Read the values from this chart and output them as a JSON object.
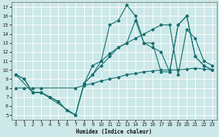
{
  "xlabel": "Humidex (Indice chaleur)",
  "bg_color": "#cce8e8",
  "grid_color": "#b8d8d8",
  "line_color": "#1a7070",
  "xlim": [
    -0.5,
    23.5
  ],
  "ylim": [
    4.5,
    17.5
  ],
  "xticks": [
    0,
    1,
    2,
    3,
    4,
    5,
    6,
    7,
    8,
    9,
    10,
    11,
    12,
    13,
    14,
    15,
    16,
    17,
    18,
    19,
    20,
    21,
    22,
    23
  ],
  "yticks": [
    5,
    6,
    7,
    8,
    9,
    10,
    11,
    12,
    13,
    14,
    15,
    16,
    17
  ],
  "lines": [
    {
      "x": [
        0,
        1,
        2,
        3,
        4,
        5,
        6,
        7,
        8,
        9,
        10,
        11,
        12,
        13,
        14,
        15,
        16,
        17,
        18,
        19,
        20,
        21,
        22,
        23
      ],
      "y": [
        9.5,
        9.0,
        7.5,
        7.5,
        7.0,
        6.5,
        5.5,
        5.0,
        8.5,
        10.5,
        11.0,
        15.0,
        15.5,
        17.2,
        16.0,
        13.0,
        13.0,
        9.8,
        9.8,
        15.0,
        16.0,
        11.5,
        10.5,
        10.0
      ]
    },
    {
      "x": [
        0,
        1,
        2,
        3,
        4,
        5,
        6,
        7,
        8,
        9,
        10,
        11,
        12,
        13,
        14,
        15,
        16,
        17,
        18,
        19,
        20,
        21,
        22,
        23
      ],
      "y": [
        9.5,
        9.0,
        7.5,
        7.5,
        7.0,
        6.5,
        5.5,
        5.0,
        8.5,
        9.5,
        11.0,
        11.8,
        12.5,
        13.0,
        15.5,
        13.0,
        12.5,
        12.0,
        9.8,
        15.0,
        16.0,
        11.5,
        10.5,
        10.0
      ]
    },
    {
      "x": [
        0,
        2,
        3,
        7,
        8,
        9,
        10,
        11,
        12,
        13,
        14,
        15,
        16,
        17,
        18,
        19,
        20,
        21,
        22,
        23
      ],
      "y": [
        9.5,
        7.5,
        7.5,
        5.0,
        8.5,
        9.5,
        10.5,
        11.5,
        12.5,
        13.0,
        13.5,
        14.0,
        14.5,
        15.0,
        15.0,
        9.5,
        14.5,
        13.5,
        11.0,
        10.5
      ]
    },
    {
      "x": [
        0,
        1,
        2,
        3,
        7,
        8,
        9,
        10,
        11,
        12,
        13,
        14,
        15,
        16,
        17,
        18,
        19,
        20,
        21,
        22,
        23
      ],
      "y": [
        8.0,
        8.0,
        8.0,
        8.0,
        8.0,
        8.3,
        8.5,
        8.8,
        9.0,
        9.2,
        9.5,
        9.6,
        9.8,
        9.9,
        10.0,
        10.0,
        10.0,
        10.1,
        10.2,
        10.1,
        10.0
      ]
    }
  ]
}
